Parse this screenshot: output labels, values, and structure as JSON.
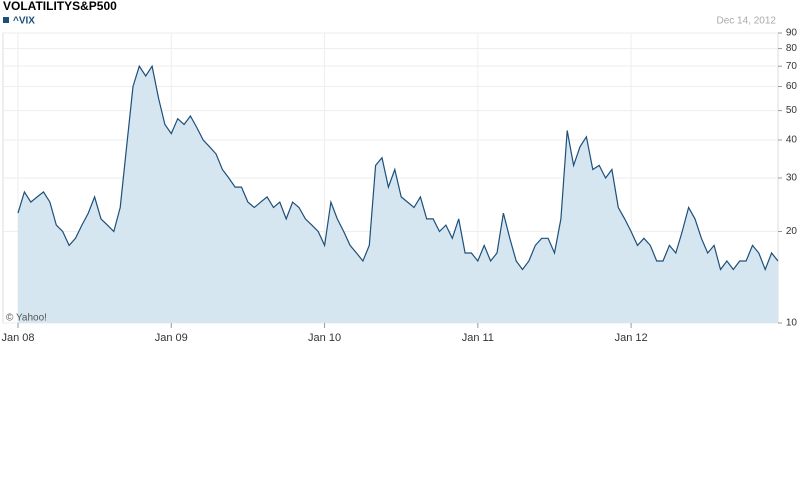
{
  "chart_data": {
    "type": "area",
    "title": "VOLATILITYS&P500",
    "date": "Dec 14, 2012",
    "credit": "© Yahoo!",
    "categories": [
      "Jan 08",
      null,
      null,
      null,
      null,
      null,
      null,
      null,
      null,
      null,
      null,
      null,
      null,
      null,
      null,
      null,
      null,
      null,
      null,
      null,
      null,
      null,
      null,
      null,
      "Jan 09",
      null,
      null,
      null,
      null,
      null,
      null,
      null,
      null,
      null,
      null,
      null,
      null,
      null,
      null,
      null,
      null,
      null,
      null,
      null,
      null,
      null,
      null,
      null,
      "Jan 10",
      null,
      null,
      null,
      null,
      null,
      null,
      null,
      null,
      null,
      null,
      null,
      null,
      null,
      null,
      null,
      null,
      null,
      null,
      null,
      null,
      null,
      null,
      null,
      "Jan 11",
      null,
      null,
      null,
      null,
      null,
      null,
      null,
      null,
      null,
      null,
      null,
      null,
      null,
      null,
      null,
      null,
      null,
      null,
      null,
      null,
      null,
      null,
      null,
      "Jan 12",
      null,
      null,
      null,
      null,
      null,
      null,
      null,
      null,
      null,
      null,
      null,
      null,
      null,
      null,
      null,
      null,
      null,
      null,
      null,
      null,
      null,
      null,
      null
    ],
    "series": [
      {
        "name": "^VIX",
        "color": "#1d4f7a",
        "fill": "#d6e6f1",
        "values": [
          23,
          27,
          25,
          26,
          27,
          25,
          21,
          20,
          18,
          19,
          21,
          23,
          26,
          22,
          21,
          20,
          24,
          38,
          60,
          70,
          65,
          70,
          55,
          45,
          42,
          47,
          45,
          48,
          44,
          40,
          38,
          36,
          32,
          30,
          28,
          28,
          25,
          24,
          25,
          26,
          24,
          25,
          22,
          25,
          24,
          22,
          21,
          20,
          18,
          25,
          22,
          20,
          18,
          17,
          16,
          18,
          33,
          35,
          28,
          32,
          26,
          25,
          24,
          26,
          22,
          22,
          20,
          21,
          19,
          22,
          17,
          17,
          16,
          18,
          16,
          17,
          23,
          19,
          16,
          15,
          16,
          18,
          19,
          19,
          17,
          22,
          43,
          33,
          38,
          41,
          32,
          33,
          30,
          32,
          24,
          22,
          20,
          18,
          19,
          18,
          16,
          16,
          18,
          17,
          20,
          24,
          22,
          19,
          17,
          18,
          15,
          16,
          15,
          16,
          16,
          18,
          17,
          15,
          17,
          16
        ]
      }
    ],
    "ylim": [
      10,
      90
    ],
    "yticks": [
      10,
      20,
      30,
      40,
      50,
      60,
      70,
      80,
      90
    ],
    "log_scale": true,
    "grid": true
  }
}
